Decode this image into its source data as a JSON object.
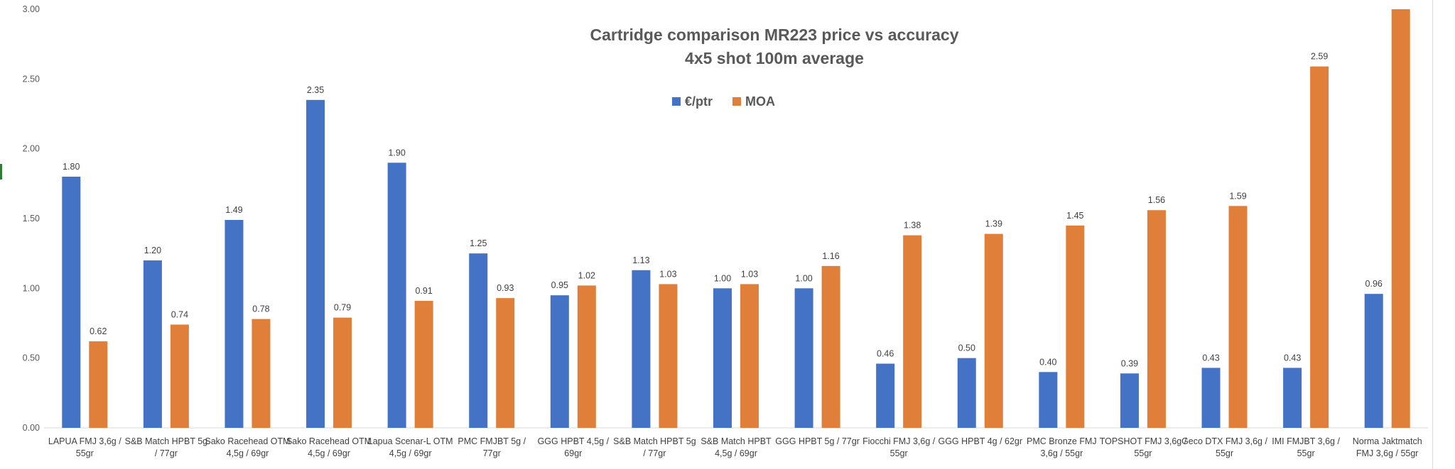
{
  "chart_data": {
    "type": "bar",
    "title": "Cartridge comparison MR223 price vs accuracy",
    "subtitle": "4x5 shot 100m average",
    "xlabel": "",
    "ylabel": "",
    "ylim": [
      0,
      3.0
    ],
    "yticks": [
      "0.00",
      "0.50",
      "1.00",
      "1.50",
      "2.00",
      "2.50",
      "3.00"
    ],
    "grid": false,
    "legend_position": "top-center",
    "categories": [
      [
        "LAPUA FMJ 3,6g /",
        "55gr"
      ],
      [
        "S&B Match HPBT 5g",
        "/ 77gr"
      ],
      [
        "Sako Racehead OTM",
        "4,5g / 69gr"
      ],
      [
        "Sako Racehead OTM",
        "4,5g / 69gr"
      ],
      [
        "Lapua Scenar-L OTM",
        "4,5g / 69gr"
      ],
      [
        "PMC FMJBT 5g /",
        "77gr"
      ],
      [
        "GGG HPBT 4,5g /",
        "69gr"
      ],
      [
        "S&B Match HPBT 5g",
        "/ 77gr"
      ],
      [
        "S&B Match HPBT",
        "4,5g / 69gr"
      ],
      [
        "GGG HPBT 5g / 77gr"
      ],
      [
        "Fiocchi FMJ 3,6g /",
        "55gr"
      ],
      [
        "GGG HPBT 4g / 62gr"
      ],
      [
        "PMC Bronze FMJ",
        "3,6g / 55gr"
      ],
      [
        "TOPSHOT FMJ 3,6g /",
        "55gr"
      ],
      [
        "Geco DTX FMJ 3,6g /",
        "55gr"
      ],
      [
        "IMI FMJBT 3,6g /",
        "55gr"
      ],
      [
        "Norma Jaktmatch",
        "FMJ 3,6g / 55gr"
      ]
    ],
    "series": [
      {
        "name": "€/ptr",
        "color": "#4472c4",
        "values": [
          1.8,
          1.2,
          1.49,
          2.35,
          1.9,
          1.25,
          0.95,
          1.13,
          1.0,
          1.0,
          0.46,
          0.5,
          0.4,
          0.39,
          0.43,
          0.43,
          0.96
        ],
        "labels": [
          "1.80",
          "1.20",
          "1.49",
          "2.35",
          "1.90",
          "1.25",
          "0.95",
          "1.13",
          "1.00",
          "1.00",
          "0.46",
          "0.50",
          "0.40",
          "0.39",
          "0.43",
          "0.43",
          "0.96"
        ]
      },
      {
        "name": "MOA",
        "color": "#e07f3a",
        "values": [
          0.62,
          0.74,
          0.78,
          0.79,
          0.91,
          0.93,
          1.02,
          1.03,
          1.03,
          1.16,
          1.38,
          1.39,
          1.45,
          1.56,
          1.59,
          2.59,
          3.0
        ],
        "labels": [
          "0.62",
          "0.74",
          "0.78",
          "0.79",
          "0.91",
          "0.93",
          "1.02",
          "1.03",
          "1.03",
          "1.16",
          "1.38",
          "1.39",
          "1.45",
          "1.56",
          "1.59",
          "2.59",
          ""
        ]
      }
    ]
  }
}
